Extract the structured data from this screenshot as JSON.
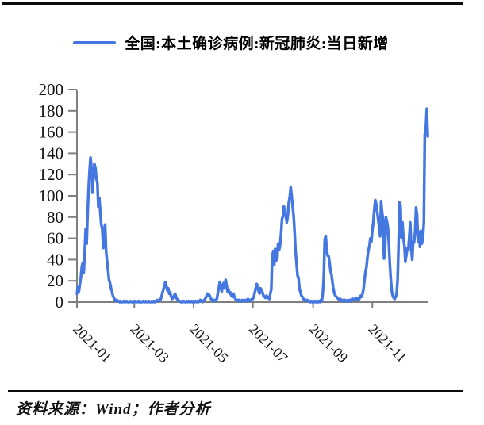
{
  "legend": {
    "label": "全国:本土确诊病例:新冠肺炎:当日新增",
    "swatch_color": "#4577e0"
  },
  "footer": {
    "source_text": "资料来源：Wind；作者分析"
  },
  "colors": {
    "line": "#4577e0",
    "axis": "#7f7f7f",
    "text": "#111111",
    "rule": "#0a0a0a"
  },
  "chart_data": {
    "type": "line",
    "title": "",
    "xlabel": "",
    "ylabel": "",
    "ylim": [
      0,
      200
    ],
    "grid": false,
    "legend_position": "top-center",
    "y_ticks": [
      0,
      20,
      40,
      60,
      80,
      100,
      120,
      140,
      160,
      180,
      200
    ],
    "x_tick_labels": [
      "2021-01",
      "2021-03",
      "2021-05",
      "2021-07",
      "2021-09",
      "2021-11"
    ],
    "series": [
      {
        "name": "全国:本土确诊病例:新冠肺炎:当日新增",
        "color": "#4577e0",
        "frequency": "daily",
        "start_date": "2021-01-01",
        "end_date": "2021-12-28",
        "values": [
          8,
          14,
          10,
          17,
          23,
          33,
          37,
          28,
          48,
          69,
          55,
          85,
          107,
          124,
          136,
          126,
          103,
          118,
          130,
          126,
          116,
          113,
          90,
          98,
          85,
          73,
          70,
          51,
          66,
          73,
          48,
          38,
          30,
          21,
          18,
          13,
          10,
          6,
          4,
          2,
          1,
          2,
          1,
          1,
          0,
          1,
          0,
          0,
          1,
          0,
          0,
          1,
          0,
          0,
          0,
          1,
          0,
          0,
          1,
          0,
          1,
          0,
          0,
          1,
          0,
          1,
          0,
          0,
          1,
          0,
          0,
          1,
          0,
          0,
          1,
          0,
          0,
          1,
          0,
          1,
          0,
          1,
          1,
          2,
          1,
          2,
          2,
          5,
          9,
          12,
          15,
          19,
          15,
          11,
          13,
          8,
          9,
          5,
          3,
          4,
          6,
          8,
          5,
          3,
          2,
          1,
          1,
          0,
          1,
          0,
          1,
          0,
          0,
          1,
          0,
          1,
          0,
          0,
          1,
          0,
          1,
          0,
          1,
          0,
          1,
          0,
          1,
          2,
          1,
          0,
          1,
          2,
          3,
          5,
          8,
          6,
          7,
          5,
          3,
          2,
          1,
          2,
          1,
          2,
          3,
          9,
          13,
          19,
          15,
          10,
          16,
          18,
          13,
          21,
          16,
          10,
          12,
          8,
          9,
          6,
          5,
          8,
          5,
          3,
          2,
          2,
          1,
          2,
          1,
          1,
          2,
          1,
          1,
          2,
          1,
          2,
          3,
          2,
          1,
          2,
          3,
          3,
          5,
          9,
          13,
          17,
          15,
          10,
          8,
          13,
          11,
          9,
          6,
          5,
          4,
          6,
          5,
          4,
          3,
          8,
          12,
          43,
          48,
          35,
          50,
          39,
          40,
          55,
          49,
          53,
          64,
          78,
          81,
          90,
          85,
          80,
          75,
          81,
          94,
          99,
          108,
          100,
          90,
          81,
          66,
          48,
          36,
          25,
          23,
          13,
          9,
          6,
          5,
          3,
          2,
          2,
          1,
          2,
          1,
          1,
          0,
          1,
          0,
          1,
          0,
          1,
          0,
          1,
          0,
          1,
          0,
          2,
          1,
          8,
          22,
          59,
          62,
          50,
          44,
          43,
          37,
          29,
          26,
          18,
          12,
          8,
          6,
          5,
          4,
          3,
          2,
          3,
          2,
          1,
          2,
          1,
          2,
          1,
          1,
          2,
          1,
          2,
          1,
          2,
          3,
          2,
          3,
          2,
          4,
          3,
          2,
          4,
          6,
          5,
          8,
          13,
          22,
          29,
          33,
          43,
          49,
          53,
          60,
          57,
          68,
          75,
          87,
          96,
          92,
          85,
          78,
          70,
          62,
          95,
          85,
          78,
          41,
          48,
          80,
          76,
          70,
          55,
          36,
          22,
          10,
          6,
          4,
          3,
          5,
          8,
          21,
          53,
          94,
          91,
          61,
          75,
          60,
          53,
          38,
          44,
          51,
          49,
          61,
          75,
          51,
          40,
          57,
          56,
          66,
          89,
          82,
          57,
          66,
          52,
          67,
          55,
          60,
          75,
          158,
          162,
          182,
          156
        ]
      }
    ]
  }
}
